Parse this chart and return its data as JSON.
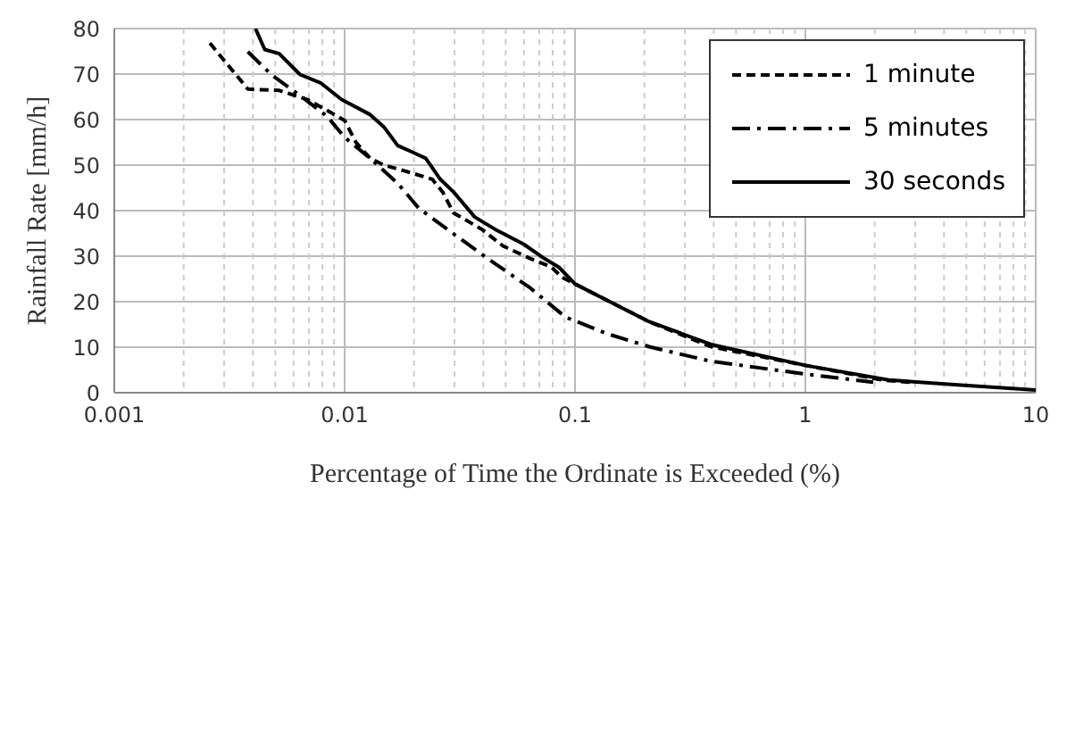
{
  "chart_data": {
    "type": "line",
    "xlabel": "Percentage of Time the Ordinate is Exceeded (%)",
    "ylabel": "Rainfall Rate [mm/h]",
    "log": "x",
    "xlim": [
      0.001,
      10
    ],
    "ylim": [
      0,
      80
    ],
    "xticks": [
      0.001,
      {
        "value": 0.002,
        "label": null
      },
      {
        "value": 0.003,
        "label": null
      },
      {
        "value": 0.004,
        "label": null
      },
      {
        "value": 0.005,
        "label": null
      },
      {
        "value": 0.006,
        "label": null
      },
      {
        "value": 0.007,
        "label": null
      },
      {
        "value": 0.008,
        "label": null
      },
      {
        "value": 0.009,
        "label": null
      },
      0.01,
      {
        "value": 0.02,
        "label": null
      },
      {
        "value": 0.03,
        "label": null
      },
      {
        "value": 0.04,
        "label": null
      },
      {
        "value": 0.05,
        "label": null
      },
      {
        "value": 0.06,
        "label": null
      },
      {
        "value": 0.07,
        "label": null
      },
      {
        "value": 0.08,
        "label": null
      },
      {
        "value": 0.09,
        "label": null
      },
      0.1,
      {
        "value": 0.2,
        "label": null
      },
      {
        "value": 0.3,
        "label": null
      },
      {
        "value": 0.4,
        "label": null
      },
      {
        "value": 0.5,
        "label": null
      },
      {
        "value": 0.6,
        "label": null
      },
      {
        "value": 0.7,
        "label": null
      },
      {
        "value": 0.8,
        "label": null
      },
      {
        "value": 0.9,
        "label": null
      },
      1,
      {
        "value": 2,
        "label": null
      },
      {
        "value": 3,
        "label": null
      },
      {
        "value": 4,
        "label": null
      },
      {
        "value": 5,
        "label": null
      },
      {
        "value": 6,
        "label": null
      },
      {
        "value": 7,
        "label": null
      },
      {
        "value": 8,
        "label": null
      },
      {
        "value": 9,
        "label": null
      },
      10
    ],
    "yticks": [
      0,
      10,
      20,
      30,
      40,
      50,
      60,
      70,
      80
    ],
    "grid": true,
    "legend": "top right",
    "marker": "none",
    "series": [
      {
        "name": "1 minute",
        "color": "#000000",
        "line_style": "dashed",
        "x": [
          0.0026,
          0.0038,
          0.0052,
          0.0069,
          0.0084,
          0.01,
          0.0112,
          0.0129,
          0.0148,
          0.0183,
          0.024,
          0.0267,
          0.0297,
          0.0394,
          0.0488,
          0.0645,
          0.079,
          0.088,
          0.1,
          0.139,
          0.21,
          0.39,
          1,
          2.15,
          3
        ],
        "values": [
          76.8,
          66.7,
          66.4,
          64.4,
          62,
          59.8,
          55,
          51.5,
          50,
          48.7,
          46.9,
          44,
          39.5,
          35.9,
          32.2,
          29.4,
          27.6,
          25.3,
          23.9,
          20.2,
          15.6,
          10.1,
          6,
          2.8,
          2.2
        ]
      },
      {
        "name": "5 minutes",
        "color": "#000000",
        "line_style": "dashdot",
        "x": [
          0.0038,
          0.0048,
          0.0064,
          0.0084,
          0.01,
          0.0129,
          0.017,
          0.021,
          0.0297,
          0.042,
          0.064,
          0.091,
          0.139,
          0.21,
          0.39,
          1,
          1.97
        ],
        "values": [
          74.9,
          69.9,
          65.3,
          60.7,
          56.1,
          51.5,
          46,
          40.5,
          34.9,
          29.4,
          23,
          16.6,
          12.9,
          10.1,
          6.9,
          4.1,
          2.3
        ]
      },
      {
        "name": "30 seconds",
        "color": "#000000",
        "line_style": "solid",
        "x": [
          0.0041,
          0.0045,
          0.0052,
          0.0064,
          0.0079,
          0.0097,
          0.0129,
          0.0148,
          0.017,
          0.0196,
          0.0225,
          0.026,
          0.0297,
          0.0367,
          0.045,
          0.06,
          0.074,
          0.085,
          0.1,
          0.139,
          0.21,
          0.39,
          1,
          2.3,
          4.6,
          10
        ],
        "values": [
          80,
          75.4,
          74.5,
          69.9,
          68,
          64.4,
          61.1,
          58.4,
          54.3,
          52.9,
          51.5,
          46.9,
          44.1,
          38.6,
          35.9,
          32.6,
          29.4,
          27.6,
          23.9,
          20.2,
          15.6,
          10.6,
          6,
          2.8,
          1.7,
          0.6
        ]
      }
    ]
  }
}
